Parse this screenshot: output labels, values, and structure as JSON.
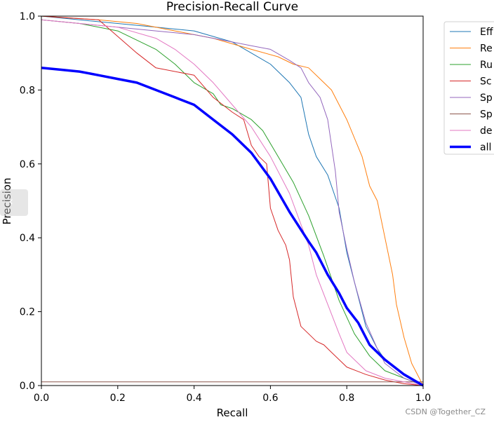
{
  "chart_data": {
    "type": "line",
    "title": "Precision-Recall Curve",
    "xlabel": "Recall",
    "ylabel": "Precision",
    "xlim": [
      0,
      1
    ],
    "ylim": [
      0,
      1
    ],
    "xticks": [
      "0.0",
      "0.2",
      "0.4",
      "0.6",
      "0.8",
      "1.0"
    ],
    "yticks": [
      "0.0",
      "0.2",
      "0.4",
      "0.6",
      "0.8",
      "1.0"
    ],
    "grid": false,
    "legend_position": "right, outside (cropped)",
    "series": [
      {
        "name": "Eff",
        "color": "#1f77b4",
        "width": 1,
        "x": [
          0.0,
          0.1,
          0.2,
          0.3,
          0.4,
          0.5,
          0.55,
          0.6,
          0.65,
          0.68,
          0.7,
          0.72,
          0.75,
          0.78,
          0.8,
          0.82,
          0.85,
          0.88,
          0.9,
          0.95,
          1.0
        ],
        "y": [
          1.0,
          0.99,
          0.98,
          0.97,
          0.96,
          0.93,
          0.9,
          0.87,
          0.82,
          0.78,
          0.68,
          0.62,
          0.57,
          0.48,
          0.36,
          0.28,
          0.16,
          0.1,
          0.07,
          0.03,
          0.0
        ]
      },
      {
        "name": "Re",
        "color": "#ff7f0e",
        "width": 1,
        "x": [
          0.0,
          0.15,
          0.25,
          0.35,
          0.45,
          0.55,
          0.62,
          0.66,
          0.7,
          0.74,
          0.76,
          0.78,
          0.8,
          0.84,
          0.86,
          0.88,
          0.9,
          0.92,
          0.93,
          0.95,
          0.97,
          1.0
        ],
        "y": [
          1.0,
          0.99,
          0.98,
          0.96,
          0.94,
          0.91,
          0.89,
          0.87,
          0.86,
          0.82,
          0.8,
          0.76,
          0.72,
          0.62,
          0.54,
          0.5,
          0.4,
          0.3,
          0.22,
          0.13,
          0.06,
          0.0
        ]
      },
      {
        "name": "Ru",
        "color": "#2ca02c",
        "width": 1,
        "x": [
          0.0,
          0.1,
          0.2,
          0.3,
          0.35,
          0.4,
          0.45,
          0.47,
          0.5,
          0.55,
          0.58,
          0.62,
          0.66,
          0.7,
          0.74,
          0.78,
          0.82,
          0.86,
          0.9,
          0.95,
          1.0
        ],
        "y": [
          0.99,
          0.98,
          0.96,
          0.91,
          0.87,
          0.82,
          0.79,
          0.76,
          0.75,
          0.72,
          0.69,
          0.62,
          0.55,
          0.46,
          0.35,
          0.23,
          0.14,
          0.08,
          0.04,
          0.02,
          0.0
        ]
      },
      {
        "name": "Sc",
        "color": "#d62728",
        "width": 1,
        "x": [
          0.0,
          0.15,
          0.25,
          0.3,
          0.4,
          0.45,
          0.5,
          0.53,
          0.55,
          0.57,
          0.59,
          0.6,
          0.62,
          0.64,
          0.65,
          0.66,
          0.68,
          0.7,
          0.72,
          0.74,
          0.76,
          0.8,
          0.85,
          0.9,
          0.95,
          1.0
        ],
        "y": [
          1.0,
          0.99,
          0.9,
          0.86,
          0.84,
          0.78,
          0.74,
          0.72,
          0.65,
          0.62,
          0.6,
          0.48,
          0.42,
          0.38,
          0.34,
          0.24,
          0.16,
          0.14,
          0.12,
          0.11,
          0.09,
          0.05,
          0.03,
          0.015,
          0.005,
          0.0
        ]
      },
      {
        "name": "Sp",
        "color": "#9467bd",
        "width": 1,
        "x": [
          0.0,
          0.1,
          0.2,
          0.3,
          0.4,
          0.5,
          0.55,
          0.6,
          0.65,
          0.68,
          0.7,
          0.73,
          0.75,
          0.77,
          0.78,
          0.8,
          0.82,
          0.85,
          0.88,
          0.9,
          0.95,
          1.0
        ],
        "y": [
          0.99,
          0.98,
          0.97,
          0.96,
          0.95,
          0.93,
          0.92,
          0.91,
          0.88,
          0.86,
          0.82,
          0.78,
          0.72,
          0.58,
          0.47,
          0.37,
          0.28,
          0.17,
          0.1,
          0.06,
          0.02,
          0.0
        ]
      },
      {
        "name": "Sp",
        "color": "#8c564b",
        "width": 1,
        "x": [
          0.0,
          1.0
        ],
        "y": [
          0.01,
          0.01
        ]
      },
      {
        "name": "de",
        "color": "#e377c2",
        "width": 1,
        "x": [
          0.0,
          0.1,
          0.2,
          0.3,
          0.35,
          0.4,
          0.45,
          0.5,
          0.55,
          0.6,
          0.65,
          0.7,
          0.72,
          0.75,
          0.78,
          0.8,
          0.85,
          0.9,
          0.95,
          1.0
        ],
        "y": [
          0.99,
          0.98,
          0.97,
          0.94,
          0.91,
          0.87,
          0.82,
          0.76,
          0.7,
          0.62,
          0.52,
          0.38,
          0.3,
          0.22,
          0.14,
          0.09,
          0.04,
          0.02,
          0.01,
          0.0
        ]
      },
      {
        "name": "all",
        "color": "#0000ff",
        "width": 3.5,
        "x": [
          0.0,
          0.05,
          0.1,
          0.15,
          0.2,
          0.25,
          0.3,
          0.35,
          0.4,
          0.45,
          0.5,
          0.55,
          0.6,
          0.65,
          0.7,
          0.72,
          0.75,
          0.78,
          0.8,
          0.83,
          0.86,
          0.9,
          0.95,
          1.0
        ],
        "y": [
          0.86,
          0.855,
          0.85,
          0.84,
          0.83,
          0.82,
          0.8,
          0.78,
          0.76,
          0.72,
          0.68,
          0.63,
          0.56,
          0.47,
          0.39,
          0.36,
          0.3,
          0.25,
          0.21,
          0.17,
          0.11,
          0.07,
          0.03,
          0.0
        ]
      }
    ]
  },
  "legend_labels": [
    "Eff",
    "Re",
    "Ru",
    "Sc",
    "Sp",
    "Sp",
    "de",
    "all"
  ],
  "watermark": "CSDN @Together_CZ"
}
